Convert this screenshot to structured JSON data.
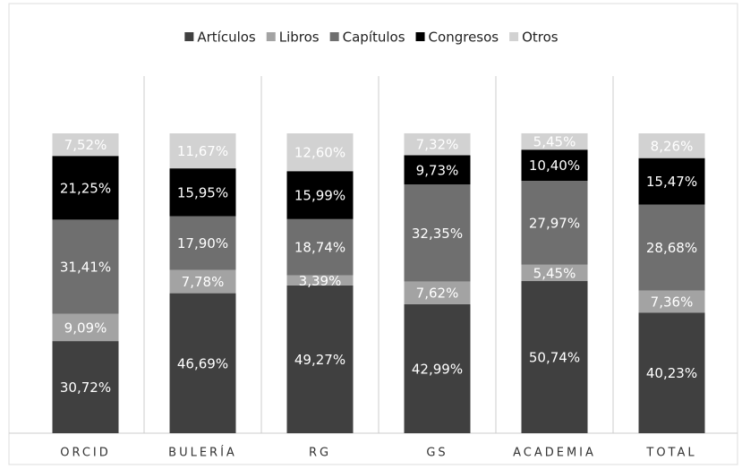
{
  "chart_data": {
    "type": "stacked_bar",
    "categories": [
      "ORCID",
      "BULERÍA",
      "RG",
      "GS",
      "ACADEMIA",
      "TOTAL"
    ],
    "ylim": [
      0,
      100
    ],
    "series": [
      {
        "name": "Artículos",
        "color": "#404040",
        "values": [
          30.72,
          46.69,
          49.27,
          42.99,
          50.74,
          40.23
        ],
        "value_labels": [
          "30,72%",
          "46,69%",
          "49,27%",
          "42,99%",
          "50,74%",
          "40,23%"
        ]
      },
      {
        "name": "Libros",
        "color": "#a3a3a3",
        "values": [
          9.09,
          7.78,
          3.39,
          7.62,
          5.45,
          7.36
        ],
        "value_labels": [
          "9,09%",
          "7,78%",
          "3,39%",
          "7,62%",
          "5,45%",
          "7,36%"
        ]
      },
      {
        "name": "Capítulos",
        "color": "#6f6f6f",
        "values": [
          31.41,
          17.9,
          18.74,
          32.35,
          27.97,
          28.68
        ],
        "value_labels": [
          "31,41%",
          "17,90%",
          "18,74%",
          "32,35%",
          "27,97%",
          "28,68%"
        ]
      },
      {
        "name": "Congresos",
        "color": "#000000",
        "values": [
          21.25,
          15.95,
          15.99,
          9.73,
          10.4,
          15.47
        ],
        "value_labels": [
          "21,25%",
          "15,95%",
          "15,99%",
          "9,73%",
          "10,40%",
          "15,47%"
        ]
      },
      {
        "name": "Otros",
        "color": "#d2d2d2",
        "values": [
          7.52,
          11.67,
          12.6,
          7.32,
          5.45,
          8.26
        ],
        "value_labels": [
          "7,52%",
          "11,67%",
          "12,60%",
          "7,32%",
          "5,45%",
          "8,26%"
        ]
      }
    ]
  }
}
